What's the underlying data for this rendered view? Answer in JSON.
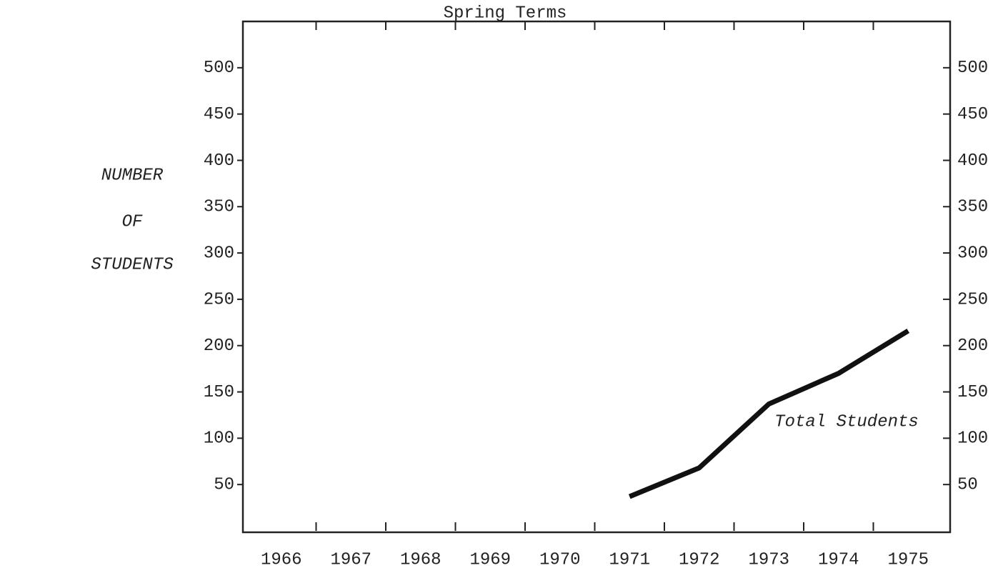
{
  "chart_data": {
    "type": "line",
    "title": "Spring Terms",
    "ylabel": [
      "NUMBER",
      "OF",
      "STUDENTS"
    ],
    "categories": [
      "1966",
      "1967",
      "1968",
      "1969",
      "1970",
      "1971",
      "1972",
      "1973",
      "1974",
      "1975"
    ],
    "series": [
      {
        "name": "Total Students",
        "color": "#111111",
        "values": [
          null,
          null,
          null,
          null,
          null,
          37,
          68,
          137,
          170,
          216
        ]
      }
    ],
    "ylim": [
      0,
      550
    ],
    "yticks": [
      50,
      100,
      150,
      200,
      250,
      300,
      350,
      400,
      450,
      500
    ],
    "y2lim": [
      0,
      550
    ],
    "y2ticks": [
      50,
      100,
      150,
      200,
      250,
      300,
      350,
      400,
      450,
      500
    ],
    "grid": false
  }
}
